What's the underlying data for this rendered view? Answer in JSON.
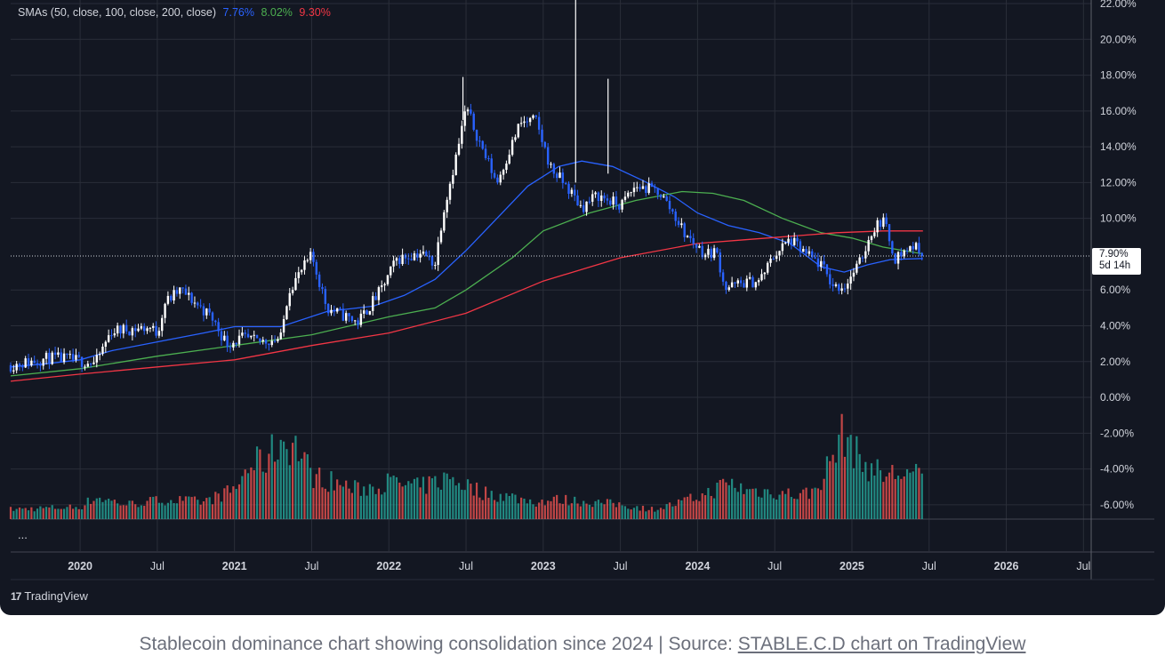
{
  "legend": {
    "prefix": "SMAs (50, close, 100, close, 200, close)",
    "sma50": "7.76%",
    "sma100": "8.02%",
    "sma200": "9.30%"
  },
  "price_label": {
    "value": "7.90%",
    "countdown": "5d 14h"
  },
  "ellipsis": "...",
  "brand": {
    "logo": "17",
    "name": "TradingView"
  },
  "caption": {
    "text": "Stablecoin dominance chart showing consolidation since 2024 | Source: ",
    "link": "STABLE.C.D chart on TradingView"
  },
  "colors": {
    "background": "#131722",
    "grid": "#2a2e39",
    "candle_up": "#ffffff",
    "candle_down": "#2962ff",
    "sma50": "#2962ff",
    "sma100": "#4caf50",
    "sma200": "#f23645",
    "volume_up": "#26a69a",
    "volume_down": "#ef5350"
  },
  "chart_data": {
    "type": "line",
    "y_axis": {
      "ticks": [
        "22.00%",
        "20.00%",
        "18.00%",
        "16.00%",
        "14.00%",
        "12.00%",
        "10.00%",
        "6.00%",
        "4.00%",
        "2.00%",
        "0.00%",
        "-2.00%",
        "-4.00%",
        "-6.00%"
      ],
      "tick_values": [
        22,
        20,
        18,
        16,
        14,
        12,
        10,
        6,
        4,
        2,
        0,
        -2,
        -4,
        -6
      ],
      "range": [
        -6.8,
        22.2
      ]
    },
    "x_axis": {
      "labels": [
        "2020",
        "Jul",
        "2021",
        "Jul",
        "2022",
        "Jul",
        "2023",
        "Jul",
        "2024",
        "Jul",
        "2025",
        "Jul",
        "2026",
        "Jul"
      ],
      "label_values": [
        2020.0,
        2020.5,
        2021.0,
        2021.5,
        2022.0,
        2022.5,
        2023.0,
        2023.5,
        2024.0,
        2024.5,
        2025.0,
        2025.5,
        2026.0,
        2026.5
      ],
      "bold": [
        true,
        false,
        true,
        false,
        true,
        false,
        true,
        false,
        true,
        false,
        true,
        false,
        true,
        false
      ],
      "range": [
        2019.55,
        2026.55
      ]
    },
    "last_value": 7.9,
    "last_time": 2025.46,
    "price_anchors": [
      [
        2019.55,
        1.8
      ],
      [
        2019.8,
        2.2
      ],
      [
        2019.95,
        2.1
      ],
      [
        2020.1,
        1.9
      ],
      [
        2020.2,
        3.7
      ],
      [
        2020.3,
        3.8
      ],
      [
        2020.45,
        3.9
      ],
      [
        2020.5,
        3.6
      ],
      [
        2020.55,
        5.3
      ],
      [
        2020.65,
        6.0
      ],
      [
        2020.85,
        4.5
      ],
      [
        2020.95,
        3.0
      ],
      [
        2021.05,
        3.3
      ],
      [
        2021.15,
        3.1
      ],
      [
        2021.3,
        3.3
      ],
      [
        2021.35,
        6.0
      ],
      [
        2021.5,
        7.9
      ],
      [
        2021.6,
        5.0
      ],
      [
        2021.8,
        4.2
      ],
      [
        2021.95,
        6.0
      ],
      [
        2022.05,
        7.7
      ],
      [
        2022.2,
        8.1
      ],
      [
        2022.3,
        7.5
      ],
      [
        2022.35,
        10.3
      ],
      [
        2022.45,
        14.0
      ],
      [
        2022.5,
        16.2
      ],
      [
        2022.6,
        14.0
      ],
      [
        2022.7,
        12.0
      ],
      [
        2022.85,
        15.3
      ],
      [
        2022.95,
        15.5
      ],
      [
        2023.05,
        12.8
      ],
      [
        2023.15,
        11.8
      ],
      [
        2023.25,
        10.6
      ],
      [
        2023.35,
        11.3
      ],
      [
        2023.5,
        10.7
      ],
      [
        2023.6,
        11.8
      ],
      [
        2023.75,
        11.5
      ],
      [
        2023.85,
        10.2
      ],
      [
        2023.92,
        9.1
      ],
      [
        2024.05,
        8.0
      ],
      [
        2024.12,
        8.2
      ],
      [
        2024.18,
        6.1
      ],
      [
        2024.3,
        6.4
      ],
      [
        2024.4,
        6.5
      ],
      [
        2024.5,
        8.0
      ],
      [
        2024.6,
        8.8
      ],
      [
        2024.7,
        8.0
      ],
      [
        2024.8,
        7.4
      ],
      [
        2024.88,
        6.2
      ],
      [
        2024.95,
        6.2
      ],
      [
        2025.05,
        7.5
      ],
      [
        2025.13,
        9.3
      ],
      [
        2025.2,
        10.0
      ],
      [
        2025.28,
        7.8
      ],
      [
        2025.4,
        8.5
      ],
      [
        2025.46,
        7.9
      ]
    ],
    "series": [
      {
        "name": "SMA 50",
        "color_key": "sma50",
        "points": [
          [
            2019.55,
            1.7
          ],
          [
            2019.8,
            1.9
          ],
          [
            2020.0,
            2.1
          ],
          [
            2020.2,
            2.6
          ],
          [
            2020.5,
            3.1
          ],
          [
            2020.8,
            3.6
          ],
          [
            2021.0,
            3.95
          ],
          [
            2021.3,
            3.95
          ],
          [
            2021.6,
            4.8
          ],
          [
            2021.9,
            5.1
          ],
          [
            2022.1,
            5.7
          ],
          [
            2022.3,
            6.6
          ],
          [
            2022.5,
            8.2
          ],
          [
            2022.7,
            10.0
          ],
          [
            2022.9,
            11.8
          ],
          [
            2023.1,
            12.9
          ],
          [
            2023.25,
            13.2
          ],
          [
            2023.45,
            12.9
          ],
          [
            2023.65,
            12.1
          ],
          [
            2023.85,
            11.2
          ],
          [
            2024.0,
            10.3
          ],
          [
            2024.2,
            9.6
          ],
          [
            2024.4,
            9.2
          ],
          [
            2024.6,
            8.6
          ],
          [
            2024.8,
            7.3
          ],
          [
            2024.95,
            7.0
          ],
          [
            2025.1,
            7.4
          ],
          [
            2025.25,
            7.7
          ],
          [
            2025.46,
            7.76
          ]
        ]
      },
      {
        "name": "SMA 100",
        "color_key": "sma100",
        "points": [
          [
            2019.55,
            1.2
          ],
          [
            2020.0,
            1.6
          ],
          [
            2020.5,
            2.3
          ],
          [
            2021.0,
            2.9
          ],
          [
            2021.5,
            3.5
          ],
          [
            2022.0,
            4.5
          ],
          [
            2022.3,
            5.0
          ],
          [
            2022.5,
            6.0
          ],
          [
            2022.8,
            7.8
          ],
          [
            2023.0,
            9.3
          ],
          [
            2023.3,
            10.3
          ],
          [
            2023.6,
            11.0
          ],
          [
            2023.9,
            11.5
          ],
          [
            2024.1,
            11.4
          ],
          [
            2024.3,
            11.0
          ],
          [
            2024.55,
            10.0
          ],
          [
            2024.8,
            9.2
          ],
          [
            2025.0,
            8.9
          ],
          [
            2025.2,
            8.4
          ],
          [
            2025.46,
            8.02
          ]
        ]
      },
      {
        "name": "SMA 200",
        "color_key": "sma200",
        "points": [
          [
            2019.55,
            0.9
          ],
          [
            2020.0,
            1.3
          ],
          [
            2020.5,
            1.7
          ],
          [
            2021.0,
            2.1
          ],
          [
            2021.5,
            2.9
          ],
          [
            2022.0,
            3.6
          ],
          [
            2022.5,
            4.7
          ],
          [
            2023.0,
            6.5
          ],
          [
            2023.5,
            7.8
          ],
          [
            2024.0,
            8.6
          ],
          [
            2024.3,
            8.8
          ],
          [
            2024.6,
            9.0
          ],
          [
            2024.9,
            9.2
          ],
          [
            2025.2,
            9.3
          ],
          [
            2025.46,
            9.3
          ]
        ]
      }
    ],
    "volume_anchors": [
      [
        2019.55,
        0.2
      ],
      [
        2020.0,
        0.25
      ],
      [
        2020.1,
        0.45
      ],
      [
        2020.3,
        0.3
      ],
      [
        2020.55,
        0.4
      ],
      [
        2020.8,
        0.35
      ],
      [
        2021.0,
        0.6
      ],
      [
        2021.1,
        1.1
      ],
      [
        2021.2,
        1.2
      ],
      [
        2021.3,
        1.6
      ],
      [
        2021.4,
        1.5
      ],
      [
        2021.5,
        0.9
      ],
      [
        2021.8,
        0.6
      ],
      [
        2022.0,
        0.75
      ],
      [
        2022.2,
        0.65
      ],
      [
        2022.4,
        0.85
      ],
      [
        2022.6,
        0.55
      ],
      [
        2022.8,
        0.45
      ],
      [
        2022.95,
        0.35
      ],
      [
        2023.1,
        0.4
      ],
      [
        2023.3,
        0.35
      ],
      [
        2023.5,
        0.3
      ],
      [
        2023.7,
        0.2
      ],
      [
        2023.85,
        0.3
      ],
      [
        2024.05,
        0.5
      ],
      [
        2024.2,
        0.75
      ],
      [
        2024.3,
        0.6
      ],
      [
        2024.5,
        0.55
      ],
      [
        2024.65,
        0.5
      ],
      [
        2024.75,
        0.55
      ],
      [
        2024.85,
        1.1
      ],
      [
        2024.95,
        1.8
      ],
      [
        2025.05,
        1.2
      ],
      [
        2025.2,
        0.9
      ],
      [
        2025.35,
        0.95
      ],
      [
        2025.46,
        0.85
      ]
    ]
  }
}
